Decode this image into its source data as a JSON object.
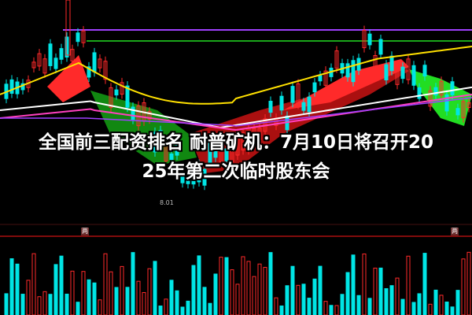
{
  "headline": {
    "line1": "全国前三配资排名 耐普矿机：7月10日将召开20",
    "line2": "25年第二次临时股东会"
  },
  "chart": {
    "price_label": "8.01",
    "badge": "两",
    "colors": {
      "up": "#ff2a2a",
      "down": "#00e5e5",
      "ma_yellow": "#ffe000",
      "ma_green": "#22dd22",
      "ma_purple": "#a040ff",
      "ma_white": "#ffffff",
      "ma_pink": "#ff40c0",
      "divider": "#aa1010"
    }
  }
}
